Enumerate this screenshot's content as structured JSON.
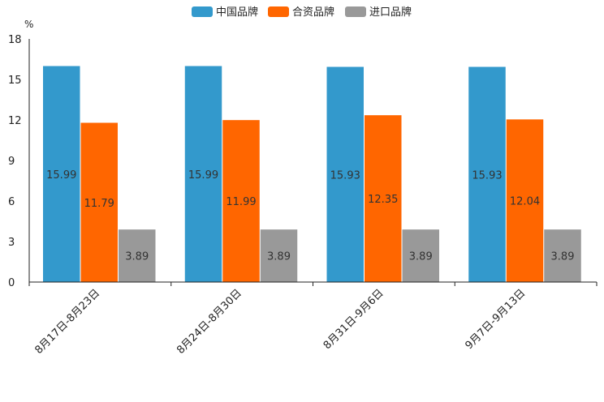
{
  "chart_data": {
    "type": "bar",
    "unit": "%",
    "categories": [
      "8月17日-8月23日",
      "8月24日-8月30日",
      "8月31日-9月6日",
      "9月7日-9月13日"
    ],
    "series": [
      {
        "name": "中国品牌",
        "color": "#3399cc",
        "values": [
          15.99,
          15.99,
          15.93,
          15.93
        ]
      },
      {
        "name": "合资品牌",
        "color": "#ff6600",
        "values": [
          11.79,
          11.99,
          12.35,
          12.04
        ]
      },
      {
        "name": "进口品牌",
        "color": "#999999",
        "values": [
          3.89,
          3.89,
          3.89,
          3.89
        ]
      }
    ],
    "y_ticks": [
      0,
      3,
      6,
      9,
      12,
      15,
      18
    ],
    "ylim": [
      0,
      18
    ],
    "legend_position": "top-center",
    "grid": false
  }
}
